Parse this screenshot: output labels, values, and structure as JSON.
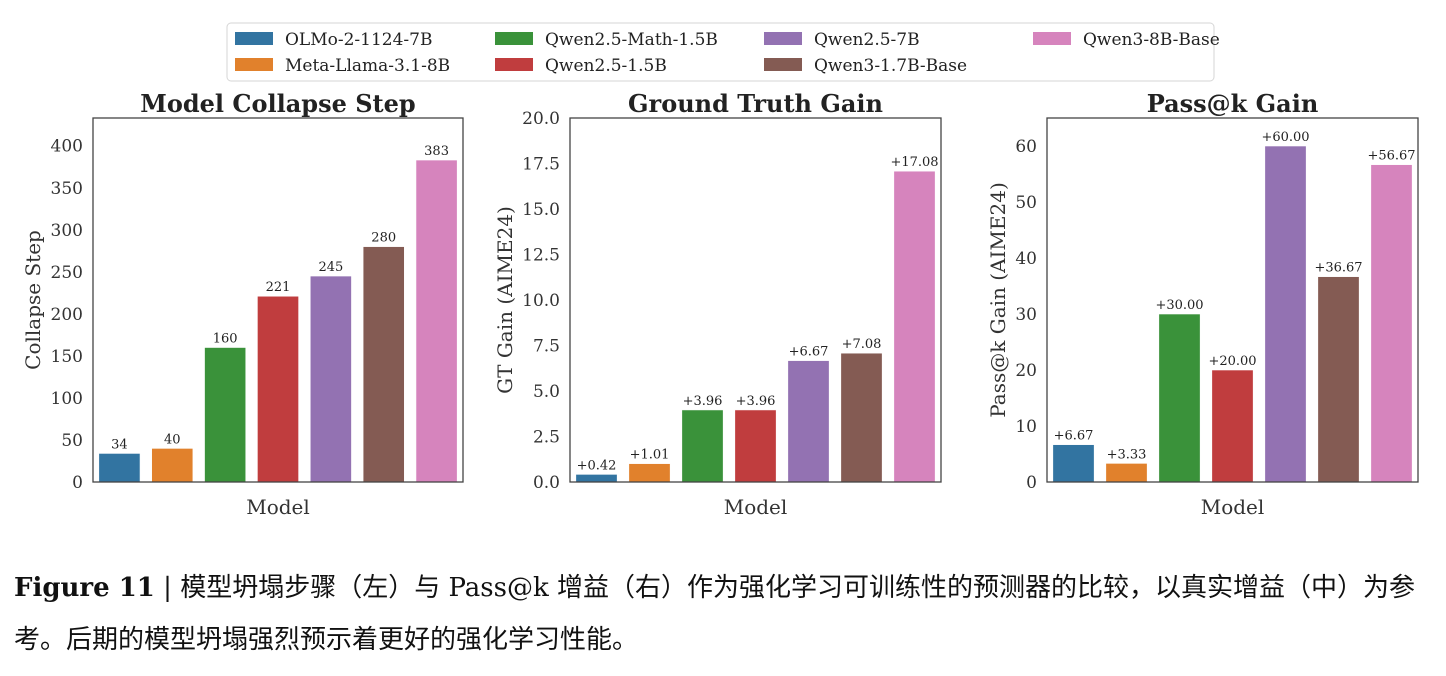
{
  "legend": {
    "entries": [
      {
        "label": "OLMo-2-1124-7B",
        "color": "#3274a1"
      },
      {
        "label": "Meta-Llama-3.1-8B",
        "color": "#e1812c"
      },
      {
        "label": "Qwen2.5-Math-1.5B",
        "color": "#3a923a"
      },
      {
        "label": "Qwen2.5-1.5B",
        "color": "#c03d3e"
      },
      {
        "label": "Qwen2.5-7B",
        "color": "#9372b2"
      },
      {
        "label": "Qwen3-1.7B-Base",
        "color": "#845b53"
      },
      {
        "label": "Qwen3-8B-Base",
        "color": "#d684bd"
      }
    ]
  },
  "chart_data": [
    {
      "type": "bar",
      "title": "Model Collapse Step",
      "xlabel": "Model",
      "ylabel": "Collapse Step",
      "categories": [
        "OLMo-2-1124-7B",
        "Meta-Llama-3.1-8B",
        "Qwen2.5-Math-1.5B",
        "Qwen2.5-1.5B",
        "Qwen2.5-7B",
        "Qwen3-1.7B-Base",
        "Qwen3-8B-Base"
      ],
      "values": [
        34,
        40,
        160,
        221,
        245,
        280,
        383
      ],
      "labels": [
        "34",
        "40",
        "160",
        "221",
        "245",
        "280",
        "383"
      ],
      "ylim": [
        0,
        433
      ],
      "yticks": [
        0,
        50,
        100,
        150,
        200,
        250,
        300,
        350,
        400
      ],
      "ytick_labels": [
        "0",
        "50",
        "100",
        "150",
        "200",
        "250",
        "300",
        "350",
        "400"
      ],
      "grid": false
    },
    {
      "type": "bar",
      "title": "Ground Truth Gain",
      "xlabel": "Model",
      "ylabel": "GT Gain (AIME24)",
      "categories": [
        "OLMo-2-1124-7B",
        "Meta-Llama-3.1-8B",
        "Qwen2.5-Math-1.5B",
        "Qwen2.5-1.5B",
        "Qwen2.5-7B",
        "Qwen3-1.7B-Base",
        "Qwen3-8B-Base"
      ],
      "values": [
        0.42,
        1.01,
        3.96,
        3.96,
        6.67,
        7.08,
        17.08
      ],
      "labels": [
        "+0.42",
        "+1.01",
        "+3.96",
        "+3.96",
        "+6.67",
        "+7.08",
        "+17.08"
      ],
      "ylim": [
        0,
        20
      ],
      "yticks": [
        0,
        2.5,
        5,
        7.5,
        10,
        12.5,
        15,
        17.5,
        20
      ],
      "ytick_labels": [
        "0.0",
        "2.5",
        "5.0",
        "7.5",
        "10.0",
        "12.5",
        "15.0",
        "17.5",
        "20.0"
      ],
      "grid": false
    },
    {
      "type": "bar",
      "title": "Pass@k Gain",
      "xlabel": "Model",
      "ylabel": "Pass@k Gain (AIME24)",
      "categories": [
        "OLMo-2-1124-7B",
        "Meta-Llama-3.1-8B",
        "Qwen2.5-Math-1.5B",
        "Qwen2.5-1.5B",
        "Qwen2.5-7B",
        "Qwen3-1.7B-Base",
        "Qwen3-8B-Base"
      ],
      "values": [
        6.67,
        3.33,
        30.0,
        20.0,
        60.0,
        36.67,
        56.67
      ],
      "labels": [
        "+6.67",
        "+3.33",
        "+30.00",
        "+20.00",
        "+60.00",
        "+36.67",
        "+56.67"
      ],
      "ylim": [
        0,
        65
      ],
      "yticks": [
        0,
        10,
        20,
        30,
        40,
        50,
        60
      ],
      "ytick_labels": [
        "0",
        "10",
        "20",
        "30",
        "40",
        "50",
        "60"
      ],
      "grid": false
    }
  ],
  "caption": {
    "label": "Figure 11",
    "separator": " | ",
    "text": "模型坍塌步骤（左）与 Pass@k 增益（右）作为强化学习可训练性的预测器的比较，以真实增益（中）为参考。后期的模型坍塌强烈预示着更好的强化学习性能。"
  }
}
